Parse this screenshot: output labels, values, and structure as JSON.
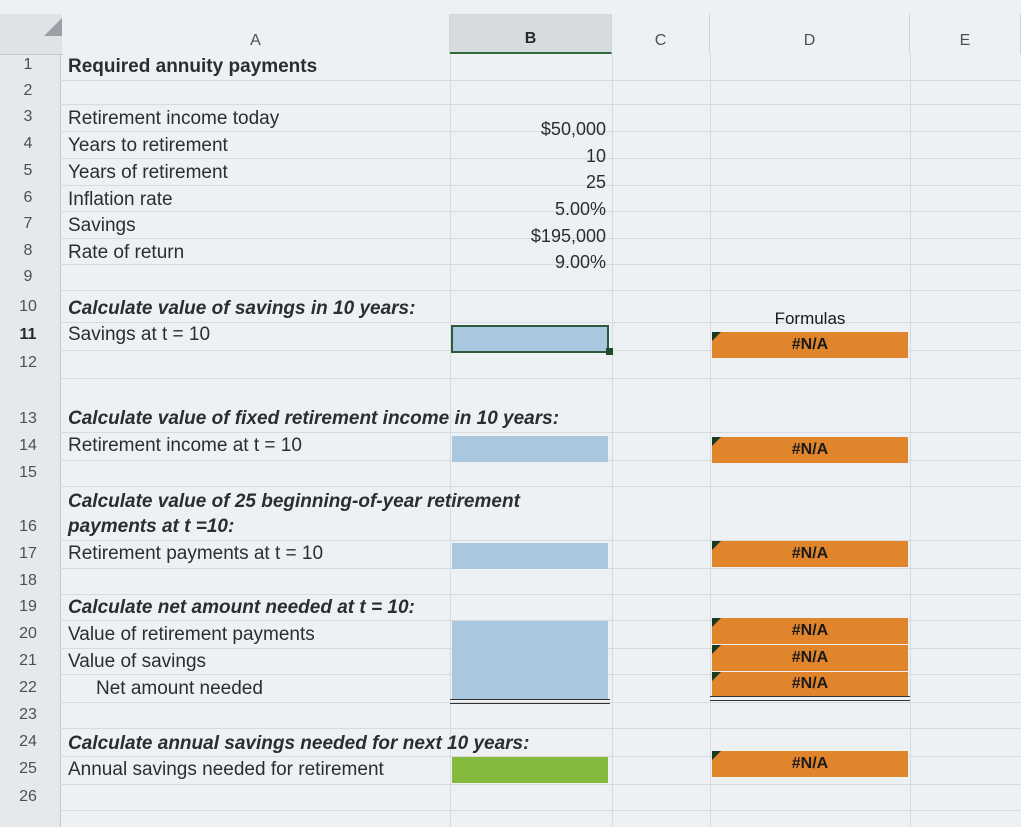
{
  "columns": [
    "A",
    "B",
    "C",
    "D",
    "E"
  ],
  "rows": [
    "1",
    "2",
    "3",
    "4",
    "5",
    "6",
    "7",
    "8",
    "9",
    "10",
    "11",
    "12",
    "13",
    "14",
    "15",
    "16",
    "17",
    "18",
    "19",
    "20",
    "21",
    "22",
    "23",
    "24",
    "25",
    "26"
  ],
  "labels": {
    "r1": "Required annuity payments",
    "r3": "Retirement income today",
    "r4": "Years to retirement",
    "r5": "Years of retirement",
    "r6": "Inflation rate",
    "r7": "Savings",
    "r8": "Rate of return",
    "r10": "Calculate value of savings in 10 years:",
    "r11": "Savings at t = 10",
    "r13": "Calculate value of fixed retirement income in 10 years:",
    "r14": "Retirement income at t = 10",
    "r16a": "Calculate value of 25 beginning-of-year retirement",
    "r16b": "payments at t =10:",
    "r17": "Retirement payments at t = 10",
    "r19": "Calculate net amount needed at t = 10:",
    "r20": "Value of retirement payments",
    "r21": "Value of savings",
    "r22": "Net amount needed",
    "r24": "Calculate annual savings needed for next 10 years:",
    "r25": "Annual savings needed for retirement"
  },
  "values": {
    "income_today": "$50,000",
    "years_to_retirement": "10",
    "years_of_retirement": "25",
    "inflation_rate": "5.00%",
    "savings": "$195,000",
    "rate_of_return": "9.00%"
  },
  "formulas": {
    "title": "Formulas",
    "r11": "#N/A",
    "r14": "#N/A",
    "r17": "#N/A",
    "r20": "#N/A",
    "r21": "#N/A",
    "r22": "#N/A",
    "r25": "#N/A"
  },
  "colors": {
    "input_blue": "#a9c8df",
    "input_green": "#86ba3c",
    "formula_orange": "#e0852b"
  }
}
